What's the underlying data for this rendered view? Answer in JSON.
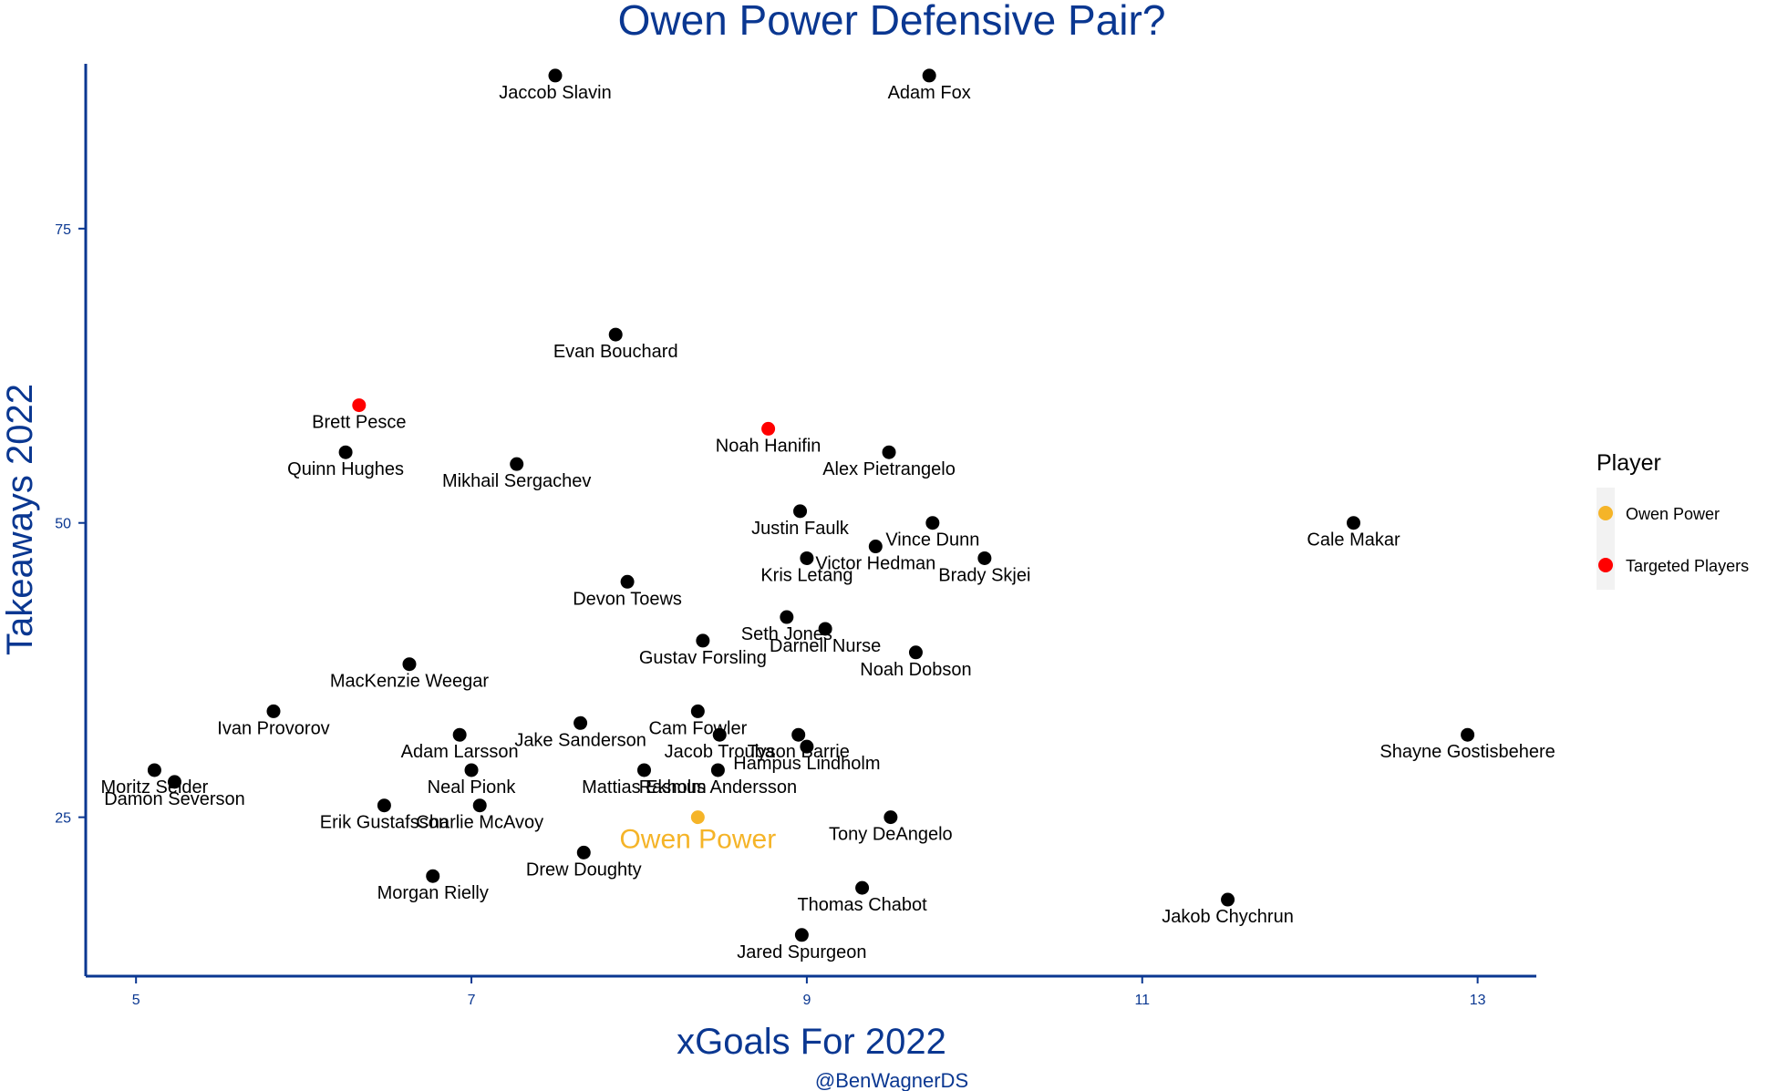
{
  "chart_data": {
    "type": "scatter",
    "title": "Owen Power Defensive Pair?",
    "xlabel": "xGoals For 2022",
    "ylabel": "Takeaways 2022",
    "caption": "@BenWagnerDS",
    "xlim": [
      4.7,
      13.35
    ],
    "ylim": [
      11.5,
      89
    ],
    "x_ticks": [
      5,
      7,
      9,
      11,
      13
    ],
    "y_ticks": [
      25,
      50,
      75
    ],
    "grid": false,
    "legend": {
      "title": "Player",
      "placement": "right",
      "entries": [
        {
          "label": "Owen Power",
          "color": "#f5b428"
        },
        {
          "label": "Targeted Players",
          "color": "#ff0000"
        }
      ]
    },
    "colors": {
      "default_point": "#000000",
      "highlight": "#f5b428",
      "targeted": "#ff0000",
      "axis": "#0a3791"
    },
    "points": [
      {
        "name": "Jaccob Slavin",
        "x": 7.5,
        "y": 88,
        "group": "other"
      },
      {
        "name": "Adam Fox",
        "x": 9.73,
        "y": 88,
        "group": "other"
      },
      {
        "name": "Evan Bouchard",
        "x": 7.86,
        "y": 66,
        "group": "other"
      },
      {
        "name": "Brett Pesce",
        "x": 6.33,
        "y": 60,
        "group": "targeted"
      },
      {
        "name": "Noah Hanifin",
        "x": 8.77,
        "y": 58,
        "group": "targeted"
      },
      {
        "name": "Quinn Hughes",
        "x": 6.25,
        "y": 56,
        "group": "other"
      },
      {
        "name": "Mikhail Sergachev",
        "x": 7.27,
        "y": 55,
        "group": "other"
      },
      {
        "name": "Alex Pietrangelo",
        "x": 9.49,
        "y": 56,
        "group": "other"
      },
      {
        "name": "Justin Faulk",
        "x": 8.96,
        "y": 51,
        "group": "other"
      },
      {
        "name": "Vince Dunn",
        "x": 9.75,
        "y": 50,
        "group": "other"
      },
      {
        "name": "Cale Makar",
        "x": 12.26,
        "y": 50,
        "group": "other"
      },
      {
        "name": "Victor Hedman",
        "x": 9.41,
        "y": 48,
        "group": "other"
      },
      {
        "name": "Kris Letang",
        "x": 9.0,
        "y": 47,
        "group": "other"
      },
      {
        "name": "Brady Skjei",
        "x": 10.06,
        "y": 47,
        "group": "other"
      },
      {
        "name": "Devon Toews",
        "x": 7.93,
        "y": 45,
        "group": "other"
      },
      {
        "name": "Seth Jones",
        "x": 8.88,
        "y": 42,
        "group": "other"
      },
      {
        "name": "Darnell Nurse",
        "x": 9.11,
        "y": 41,
        "group": "other"
      },
      {
        "name": "Gustav Forsling",
        "x": 8.38,
        "y": 40,
        "group": "other"
      },
      {
        "name": "Noah Dobson",
        "x": 9.65,
        "y": 39,
        "group": "other"
      },
      {
        "name": "MacKenzie Weegar",
        "x": 6.63,
        "y": 38,
        "group": "other"
      },
      {
        "name": "Ivan Provorov",
        "x": 5.82,
        "y": 34,
        "group": "other"
      },
      {
        "name": "Cam Fowler",
        "x": 8.35,
        "y": 34,
        "group": "other"
      },
      {
        "name": "Jake Sanderson",
        "x": 7.65,
        "y": 33,
        "group": "other"
      },
      {
        "name": "Adam Larsson",
        "x": 6.93,
        "y": 32,
        "group": "other"
      },
      {
        "name": "Jacob Trouba",
        "x": 8.48,
        "y": 32,
        "group": "other"
      },
      {
        "name": "Tyson Barrie",
        "x": 8.95,
        "y": 32,
        "group": "other"
      },
      {
        "name": "Hampus Lindholm",
        "x": 9.0,
        "y": 31,
        "group": "other"
      },
      {
        "name": "Shayne Gostisbehere",
        "x": 12.94,
        "y": 32,
        "group": "other"
      },
      {
        "name": "Moritz Seider",
        "x": 5.11,
        "y": 29,
        "group": "other"
      },
      {
        "name": "Damon Severson",
        "x": 5.23,
        "y": 28,
        "group": "other"
      },
      {
        "name": "Neal Pionk",
        "x": 7.0,
        "y": 29,
        "group": "other"
      },
      {
        "name": "Mattias Ekholm",
        "x": 8.03,
        "y": 29,
        "group": "other"
      },
      {
        "name": "Rasmus Andersson",
        "x": 8.47,
        "y": 29,
        "group": "other"
      },
      {
        "name": "Erik Gustafsson",
        "x": 6.48,
        "y": 26,
        "group": "other"
      },
      {
        "name": "Charlie McAvoy",
        "x": 7.05,
        "y": 26,
        "group": "other"
      },
      {
        "name": "Owen Power",
        "x": 8.35,
        "y": 25,
        "group": "owen"
      },
      {
        "name": "Tony DeAngelo",
        "x": 9.5,
        "y": 25,
        "group": "other"
      },
      {
        "name": "Drew Doughty",
        "x": 7.67,
        "y": 22,
        "group": "other"
      },
      {
        "name": "Morgan Rielly",
        "x": 6.77,
        "y": 20,
        "group": "other"
      },
      {
        "name": "Thomas Chabot",
        "x": 9.33,
        "y": 19,
        "group": "other"
      },
      {
        "name": "Jakob Chychrun",
        "x": 11.51,
        "y": 18,
        "group": "other"
      },
      {
        "name": "Jared Spurgeon",
        "x": 8.97,
        "y": 15,
        "group": "other"
      }
    ]
  }
}
